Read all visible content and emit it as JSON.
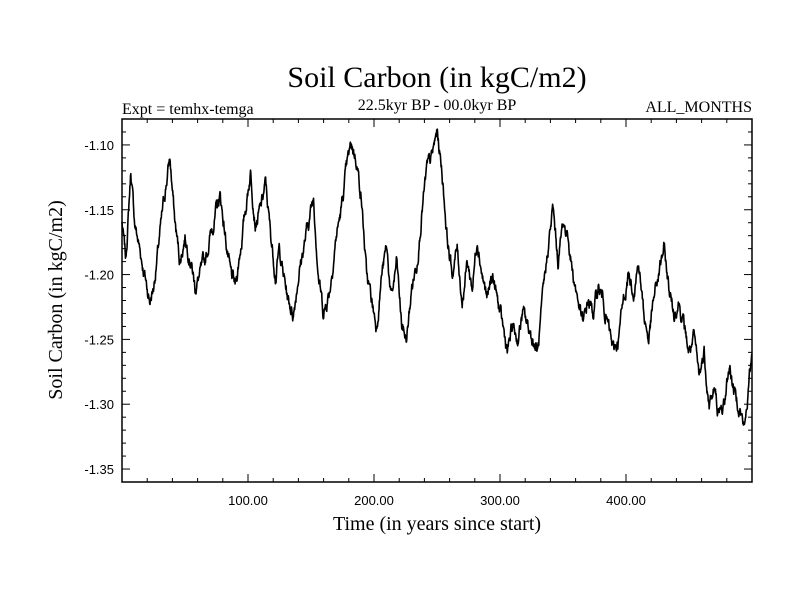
{
  "chart_data": {
    "type": "line",
    "title": "Soil Carbon (in kgC/m2)",
    "left_label": "Expt = temhx-temga",
    "center_label": "22.5kyr BP - 00.0kyr BP",
    "right_label": "ALL_MONTHS",
    "xlabel": "Time (in years since start)",
    "ylabel": "Soil Carbon (in kgC/m2)",
    "xlim": [
      0,
      500
    ],
    "ylim": [
      -1.36,
      -1.08
    ],
    "xticks": [
      100,
      200,
      300,
      400
    ],
    "xtick_labels": [
      "100.00",
      "200.00",
      "300.00",
      "400.00"
    ],
    "yticks": [
      -1.35,
      -1.3,
      -1.25,
      -1.2,
      -1.15,
      -1.1
    ],
    "ytick_labels": [
      "-1.35",
      "-1.30",
      "-1.25",
      "-1.20",
      "-1.15",
      "-1.10"
    ],
    "series": [
      {
        "name": "Soil Carbon",
        "x": [
          0,
          3,
          7,
          10,
          14,
          18,
          22,
          25,
          30,
          35,
          38,
          42,
          46,
          50,
          55,
          58,
          62,
          66,
          70,
          75,
          78,
          82,
          86,
          90,
          94,
          98,
          102,
          106,
          110,
          114,
          118,
          122,
          125,
          128,
          132,
          136,
          140,
          144,
          148,
          152,
          156,
          160,
          165,
          170,
          174,
          178,
          182,
          186,
          190,
          194,
          198,
          202,
          206,
          210,
          214,
          218,
          222,
          226,
          230,
          234,
          238,
          242,
          246,
          250,
          254,
          258,
          262,
          266,
          270,
          274,
          278,
          282,
          286,
          290,
          294,
          298,
          302,
          306,
          310,
          314,
          318,
          322,
          326,
          330,
          334,
          338,
          342,
          346,
          350,
          354,
          358,
          362,
          366,
          370,
          374,
          378,
          382,
          386,
          390,
          394,
          398,
          402,
          406,
          410,
          414,
          418,
          422,
          426,
          430,
          434,
          438,
          442,
          446,
          450,
          454,
          458,
          462,
          466,
          470,
          474,
          478,
          482,
          486,
          490,
          494,
          498,
          500
        ],
        "values": [
          -1.16,
          -1.19,
          -1.12,
          -1.16,
          -1.18,
          -1.2,
          -1.22,
          -1.21,
          -1.17,
          -1.13,
          -1.11,
          -1.16,
          -1.19,
          -1.17,
          -1.19,
          -1.21,
          -1.2,
          -1.19,
          -1.17,
          -1.15,
          -1.14,
          -1.17,
          -1.2,
          -1.21,
          -1.18,
          -1.15,
          -1.12,
          -1.16,
          -1.15,
          -1.13,
          -1.17,
          -1.2,
          -1.18,
          -1.2,
          -1.22,
          -1.23,
          -1.2,
          -1.18,
          -1.16,
          -1.14,
          -1.2,
          -1.23,
          -1.21,
          -1.17,
          -1.15,
          -1.12,
          -1.1,
          -1.11,
          -1.14,
          -1.2,
          -1.22,
          -1.24,
          -1.2,
          -1.18,
          -1.22,
          -1.19,
          -1.24,
          -1.25,
          -1.21,
          -1.19,
          -1.15,
          -1.12,
          -1.11,
          -1.09,
          -1.12,
          -1.17,
          -1.2,
          -1.18,
          -1.22,
          -1.19,
          -1.21,
          -1.17,
          -1.2,
          -1.22,
          -1.2,
          -1.22,
          -1.24,
          -1.26,
          -1.24,
          -1.25,
          -1.23,
          -1.24,
          -1.25,
          -1.26,
          -1.22,
          -1.18,
          -1.15,
          -1.19,
          -1.16,
          -1.17,
          -1.2,
          -1.22,
          -1.24,
          -1.22,
          -1.23,
          -1.21,
          -1.22,
          -1.24,
          -1.26,
          -1.25,
          -1.22,
          -1.2,
          -1.21,
          -1.19,
          -1.23,
          -1.25,
          -1.22,
          -1.2,
          -1.18,
          -1.21,
          -1.23,
          -1.22,
          -1.24,
          -1.26,
          -1.25,
          -1.28,
          -1.26,
          -1.3,
          -1.29,
          -1.31,
          -1.3,
          -1.27,
          -1.29,
          -1.3,
          -1.32,
          -1.28,
          -1.26
        ]
      }
    ]
  }
}
